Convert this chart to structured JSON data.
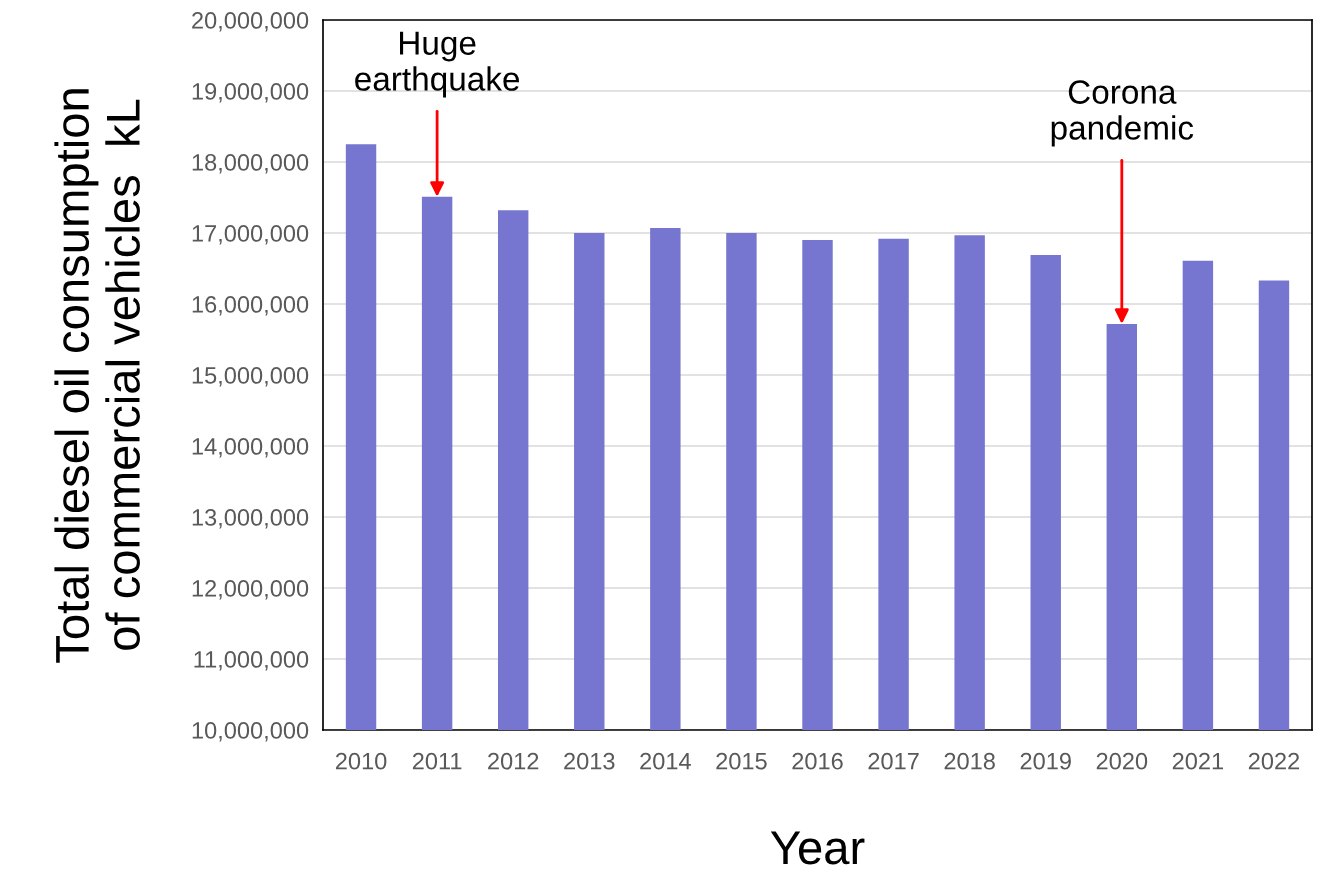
{
  "chart_data": {
    "type": "bar",
    "xlabel": "Year",
    "ylabel": "Total diesel oil consumption\nof commercial vehicles  kL",
    "categories": [
      "2010",
      "2011",
      "2012",
      "2013",
      "2014",
      "2015",
      "2016",
      "2017",
      "2018",
      "2019",
      "2020",
      "2021",
      "2022"
    ],
    "values": [
      18250000,
      17510000,
      17320000,
      17000000,
      17070000,
      17000000,
      16900000,
      16920000,
      16970000,
      16690000,
      15720000,
      16610000,
      16330000
    ],
    "color": "#7676d0",
    "ylim": [
      10000000,
      20000000
    ],
    "yticks": [
      {
        "value": 10000000,
        "label": "10,000,000"
      },
      {
        "value": 11000000,
        "label": "11,000,000"
      },
      {
        "value": 12000000,
        "label": "12,000,000"
      },
      {
        "value": 13000000,
        "label": "13,000,000"
      },
      {
        "value": 14000000,
        "label": "14,000,000"
      },
      {
        "value": 15000000,
        "label": "15,000,000"
      },
      {
        "value": 16000000,
        "label": "16,000,000"
      },
      {
        "value": 17000000,
        "label": "17,000,000"
      },
      {
        "value": 18000000,
        "label": "18,000,000"
      },
      {
        "value": 19000000,
        "label": "19,000,000"
      },
      {
        "value": 20000000,
        "label": "20,000,000"
      }
    ],
    "grid": "y",
    "annotations": [
      {
        "text": "Huge\nearthquake",
        "x": "2011",
        "y": 17510000
      },
      {
        "text": "Corona\npandemic",
        "x": "2020",
        "y": 15720000
      }
    ]
  }
}
